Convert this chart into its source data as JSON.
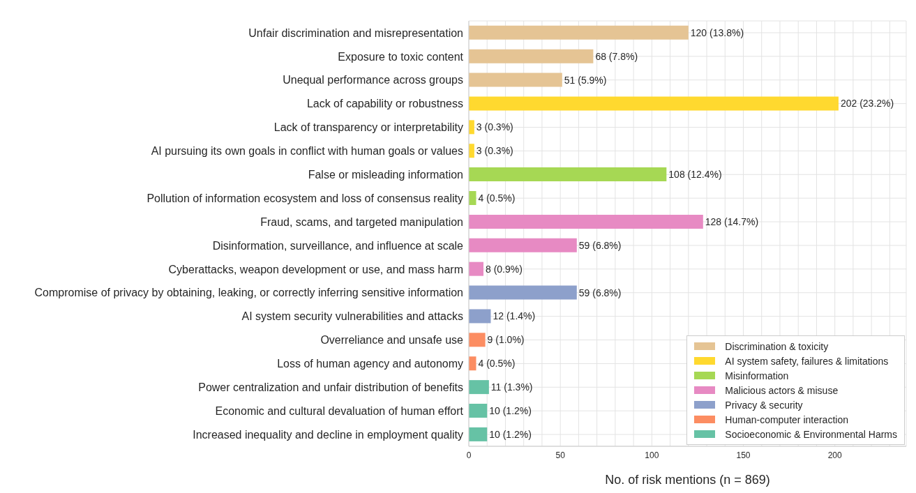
{
  "chart_data": {
    "type": "bar",
    "orientation": "horizontal",
    "stacked": true,
    "xlabel": "No. of risk mentions (n = 869)",
    "categories": [
      "Unfair discrimination and misrepresentation",
      "Exposure to toxic content",
      "Unequal performance across groups",
      "Lack of capability or robustness",
      "Lack of transparency or interpretability",
      "AI pursuing its own goals in conflict with human goals or values",
      "False or misleading information",
      "Pollution of information ecosystem and loss of consensus reality",
      "Fraud, scams, and targeted manipulation",
      "Disinformation, surveillance, and influence at scale",
      "Cyberattacks, weapon development or use, and mass harm",
      "Compromise of privacy by obtaining, leaking, or correctly inferring sensitive information",
      "AI system security vulnerabilities and attacks",
      "Overreliance and unsafe use",
      "Loss of human agency and autonomy",
      "Power centralization and unfair distribution of benefits",
      "Economic and cultural devaluation of human effort",
      "Increased inequality and decline in employment quality"
    ],
    "series": [
      {
        "name": "Discrimination & toxicity",
        "color": "#e5c494",
        "values": [
          120,
          68,
          51,
          null,
          null,
          null,
          null,
          null,
          null,
          null,
          null,
          null,
          null,
          null,
          null,
          null,
          null,
          null
        ],
        "value_labels": [
          "120 (13.8%)",
          "68 (7.8%)",
          "51 (5.9%)",
          null,
          null,
          null,
          null,
          null,
          null,
          null,
          null,
          null,
          null,
          null,
          null,
          null,
          null,
          null
        ]
      },
      {
        "name": "AI system safety, failures & limitations",
        "color": "#ffd92f",
        "values": [
          null,
          null,
          null,
          202,
          3,
          3,
          null,
          null,
          null,
          null,
          null,
          null,
          null,
          null,
          null,
          null,
          null,
          null
        ],
        "value_labels": [
          null,
          null,
          null,
          "202 (23.2%)",
          "3 (0.3%)",
          "3 (0.3%)",
          null,
          null,
          null,
          null,
          null,
          null,
          null,
          null,
          null,
          null,
          null,
          null
        ]
      },
      {
        "name": "Misinformation",
        "color": "#a6d854",
        "values": [
          null,
          null,
          null,
          null,
          null,
          null,
          108,
          4,
          null,
          null,
          null,
          null,
          null,
          null,
          null,
          null,
          null,
          null
        ],
        "value_labels": [
          null,
          null,
          null,
          null,
          null,
          null,
          "108 (12.4%)",
          "4 (0.5%)",
          null,
          null,
          null,
          null,
          null,
          null,
          null,
          null,
          null,
          null
        ]
      },
      {
        "name": "Malicious actors & misuse",
        "color": "#e78ac3",
        "values": [
          null,
          null,
          null,
          null,
          null,
          null,
          null,
          null,
          128,
          59,
          8,
          null,
          null,
          null,
          null,
          null,
          null,
          null
        ],
        "value_labels": [
          null,
          null,
          null,
          null,
          null,
          null,
          null,
          null,
          "128 (14.7%)",
          "59 (6.8%)",
          "8 (0.9%)",
          null,
          null,
          null,
          null,
          null,
          null,
          null
        ]
      },
      {
        "name": "Privacy & security",
        "color": "#8da0cb",
        "values": [
          null,
          null,
          null,
          null,
          null,
          null,
          null,
          null,
          null,
          null,
          null,
          59,
          12,
          null,
          null,
          null,
          null,
          null
        ],
        "value_labels": [
          null,
          null,
          null,
          null,
          null,
          null,
          null,
          null,
          null,
          null,
          null,
          "59 (6.8%)",
          "12 (1.4%)",
          null,
          null,
          null,
          null,
          null
        ]
      },
      {
        "name": "Human-computer interaction",
        "color": "#fc8d62",
        "values": [
          null,
          null,
          null,
          null,
          null,
          null,
          null,
          null,
          null,
          null,
          null,
          null,
          null,
          9,
          4,
          null,
          null,
          null
        ],
        "value_labels": [
          null,
          null,
          null,
          null,
          null,
          null,
          null,
          null,
          null,
          null,
          null,
          null,
          null,
          "9 (1.0%)",
          "4 (0.5%)",
          null,
          null,
          null
        ]
      },
      {
        "name": "Socioeconomic & Environmental Harms",
        "color": "#66c2a5",
        "values": [
          null,
          null,
          null,
          null,
          null,
          null,
          null,
          null,
          null,
          null,
          null,
          null,
          null,
          null,
          null,
          11,
          10,
          10
        ],
        "value_labels": [
          null,
          null,
          null,
          null,
          null,
          null,
          null,
          null,
          null,
          null,
          null,
          null,
          null,
          null,
          null,
          "11 (1.3%)",
          "10 (1.2%)",
          "10 (1.2%)"
        ]
      }
    ],
    "xlim": [
      0,
      239
    ],
    "xticks": [
      0,
      {
        "value": 10,
        "label": null
      },
      {
        "value": 20,
        "label": null
      },
      {
        "value": 30,
        "label": null
      },
      {
        "value": 40,
        "label": null
      },
      50,
      {
        "value": 60,
        "label": null
      },
      {
        "value": 70,
        "label": null
      },
      {
        "value": 80,
        "label": null
      },
      {
        "value": 90,
        "label": null
      },
      100,
      {
        "value": 110,
        "label": null
      },
      {
        "value": 120,
        "label": null
      },
      {
        "value": 130,
        "label": null
      },
      {
        "value": 140,
        "label": null
      },
      150,
      {
        "value": 160,
        "label": null
      },
      {
        "value": 170,
        "label": null
      },
      {
        "value": 180,
        "label": null
      },
      {
        "value": 190,
        "label": null
      },
      200,
      {
        "value": 210,
        "label": null
      },
      {
        "value": 220,
        "label": null
      },
      {
        "value": 230,
        "label": null
      }
    ],
    "grid": true,
    "legend": "bottom right"
  }
}
